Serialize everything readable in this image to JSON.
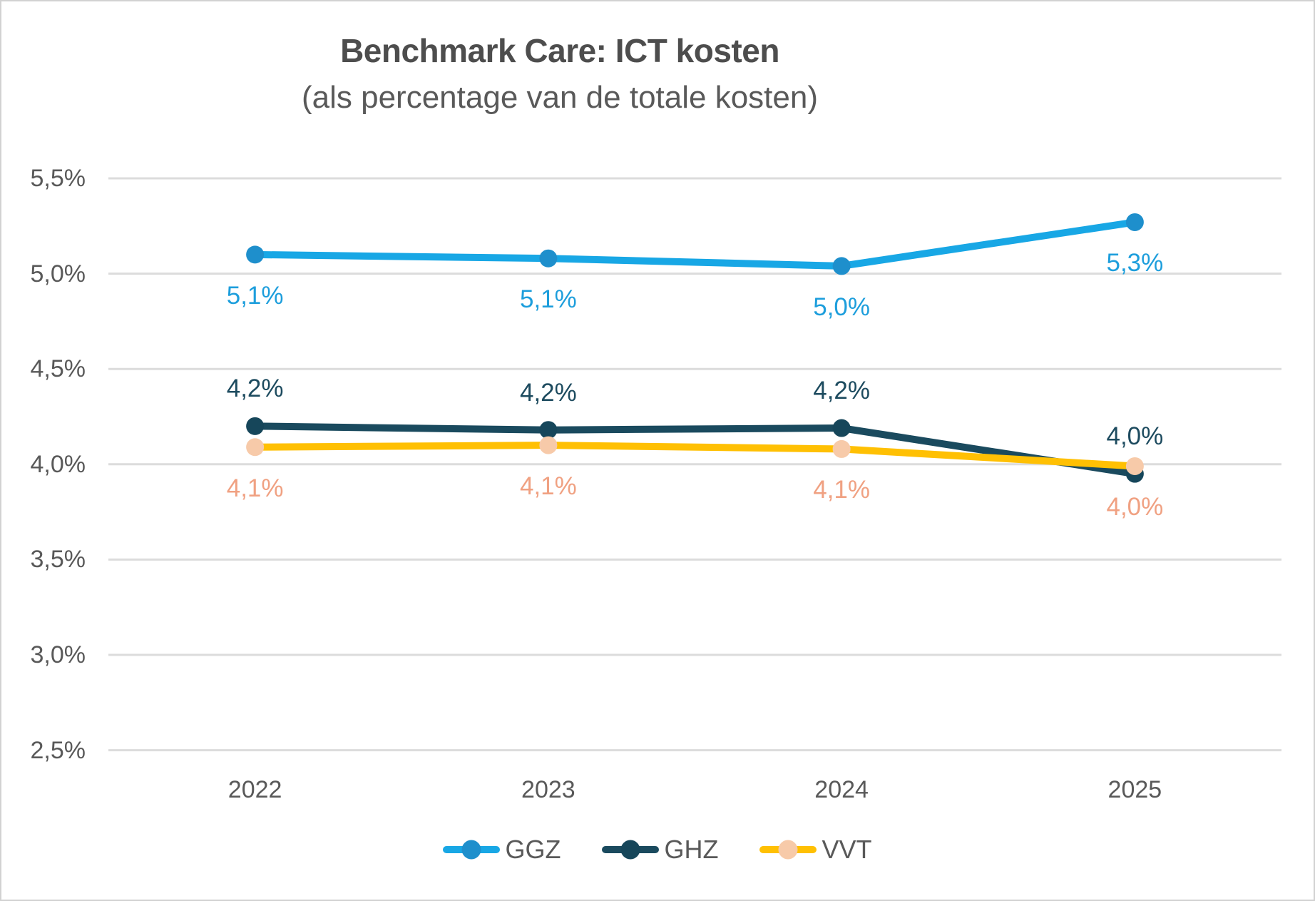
{
  "chart_data": {
    "type": "line",
    "title": "Benchmark Care: ICT kosten",
    "subtitle": "(als percentage van de totale kosten)",
    "categories": [
      "2022",
      "2023",
      "2024",
      "2025"
    ],
    "series": [
      {
        "name": "GGZ",
        "labels": [
          "5,1%",
          "5,1%",
          "5,0%",
          "5,3%"
        ],
        "values": [
          5.1,
          5.08,
          5.04,
          5.27
        ],
        "line_color": "#18a7e5",
        "marker_color": "#1e8fcc",
        "label_color": "#1d9edc",
        "label_side": "below"
      },
      {
        "name": "GHZ",
        "labels": [
          "4,2%",
          "4,2%",
          "4,2%",
          "4,0%"
        ],
        "values": [
          4.2,
          4.18,
          4.19,
          3.95
        ],
        "line_color": "#1a4a5e",
        "marker_color": "#16465a",
        "label_color": "#1d4b5f",
        "label_side": "above"
      },
      {
        "name": "VVT",
        "labels": [
          "4,1%",
          "4,1%",
          "4,1%",
          "4,0%"
        ],
        "values": [
          4.09,
          4.1,
          4.08,
          3.99
        ],
        "line_color": "#ffc003",
        "marker_color": "#f7caa9",
        "label_color": "#f0a182",
        "label_side": "below"
      }
    ],
    "y_axis": {
      "min": 2.5,
      "max": 5.5,
      "step": 0.5,
      "tick_labels": [
        "5,5%",
        "5,0%",
        "4,5%",
        "4,0%",
        "3,5%",
        "3,0%",
        "2,5%"
      ]
    },
    "grid": true,
    "legend_position": "bottom",
    "theme": {
      "grid_color": "#dcdcdc",
      "axis_text_color": "#595959",
      "title_color": "#4d4d4d",
      "background": "#ffffff"
    }
  }
}
